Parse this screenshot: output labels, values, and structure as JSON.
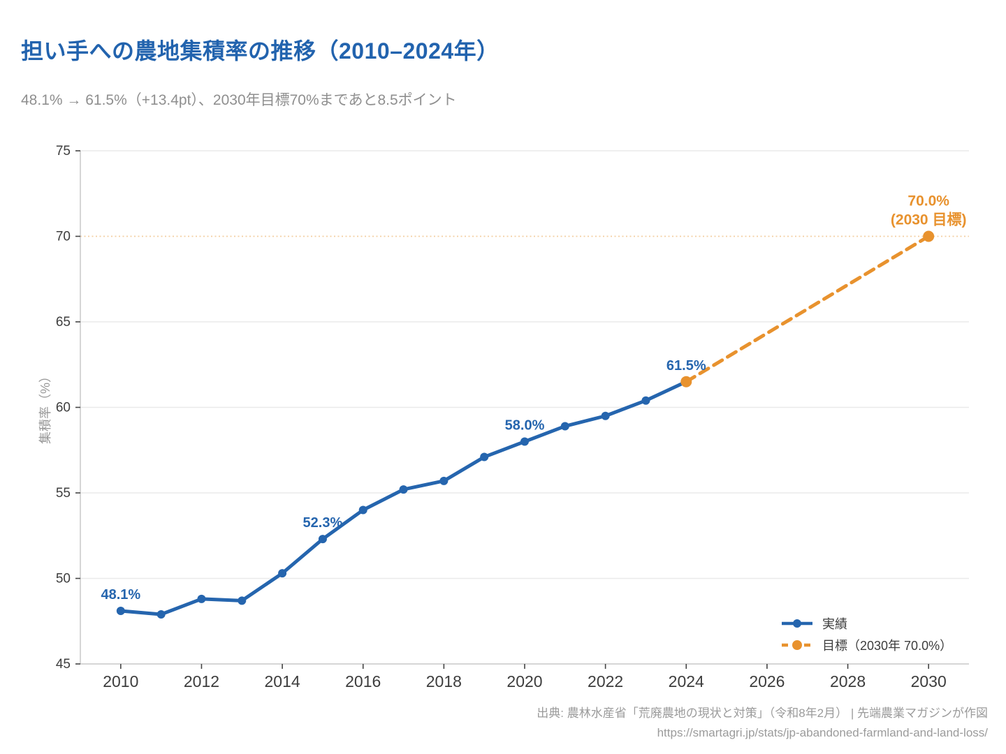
{
  "header": {
    "title": "担い手への農地集積率の推移（2010–2024年）",
    "subtitle": "48.1% → 61.5%（+13.4pt）、2030年目標70%まであと8.5ポイント"
  },
  "footer": {
    "source_line1": "出典: 農林水産省「荒廃農地の現状と対策」（令和8年2月） | 先端農業マガジンが作図",
    "source_line2": "https://smartagri.jp/stats/jp-abandoned-farmland-and-land-loss/"
  },
  "colors": {
    "title": "#2263ae",
    "actual": "#2565ae",
    "target": "#e8922e",
    "target_refline": "#f3cfa1",
    "grid": "#eaeaea",
    "spine": "#c9c9c9",
    "tick": "#444444",
    "tick_label": "#3d3d3d",
    "subtitle": "#8f8f8f",
    "axis_label": "#999999",
    "source": "#9b9b9b"
  },
  "chart_data": {
    "type": "line",
    "title": "担い手への農地集積率の推移（2010–2024年）",
    "xlabel": "",
    "ylabel": "集積率（%）",
    "xlim": [
      2009,
      2031
    ],
    "ylim": [
      45,
      75
    ],
    "x_ticks": [
      2010,
      2012,
      2014,
      2016,
      2018,
      2020,
      2022,
      2024,
      2026,
      2028,
      2030
    ],
    "y_ticks": [
      45,
      50,
      55,
      60,
      65,
      70,
      75
    ],
    "grid_y": [
      50,
      55,
      60,
      65,
      75
    ],
    "reference_line_y": 70,
    "legend_position": "lower right",
    "series": [
      {
        "name": "実績",
        "color_key": "actual",
        "style": "solid",
        "x": [
          2010,
          2011,
          2012,
          2013,
          2014,
          2015,
          2016,
          2017,
          2018,
          2019,
          2020,
          2021,
          2022,
          2023,
          2024
        ],
        "values": [
          48.1,
          47.9,
          48.8,
          48.7,
          50.3,
          52.3,
          54.0,
          55.2,
          55.7,
          57.1,
          58.0,
          58.9,
          59.5,
          60.4,
          61.5
        ]
      },
      {
        "name": "目標（2030年 70.0%）",
        "color_key": "target",
        "style": "dashed",
        "x": [
          2024,
          2030
        ],
        "values": [
          61.5,
          70.0
        ]
      }
    ],
    "annotations": [
      {
        "year": 2010,
        "value": 48.1,
        "lines": [
          "48.1%"
        ],
        "color_key": "actual"
      },
      {
        "year": 2015,
        "value": 52.3,
        "lines": [
          "52.3%"
        ],
        "color_key": "actual"
      },
      {
        "year": 2020,
        "value": 58.0,
        "lines": [
          "58.0%"
        ],
        "color_key": "actual"
      },
      {
        "year": 2024,
        "value": 61.5,
        "lines": [
          "61.5%"
        ],
        "color_key": "actual"
      },
      {
        "year": 2030,
        "value": 70.0,
        "lines": [
          "70.0%",
          "(2030 目標)"
        ],
        "color_key": "target"
      }
    ]
  }
}
